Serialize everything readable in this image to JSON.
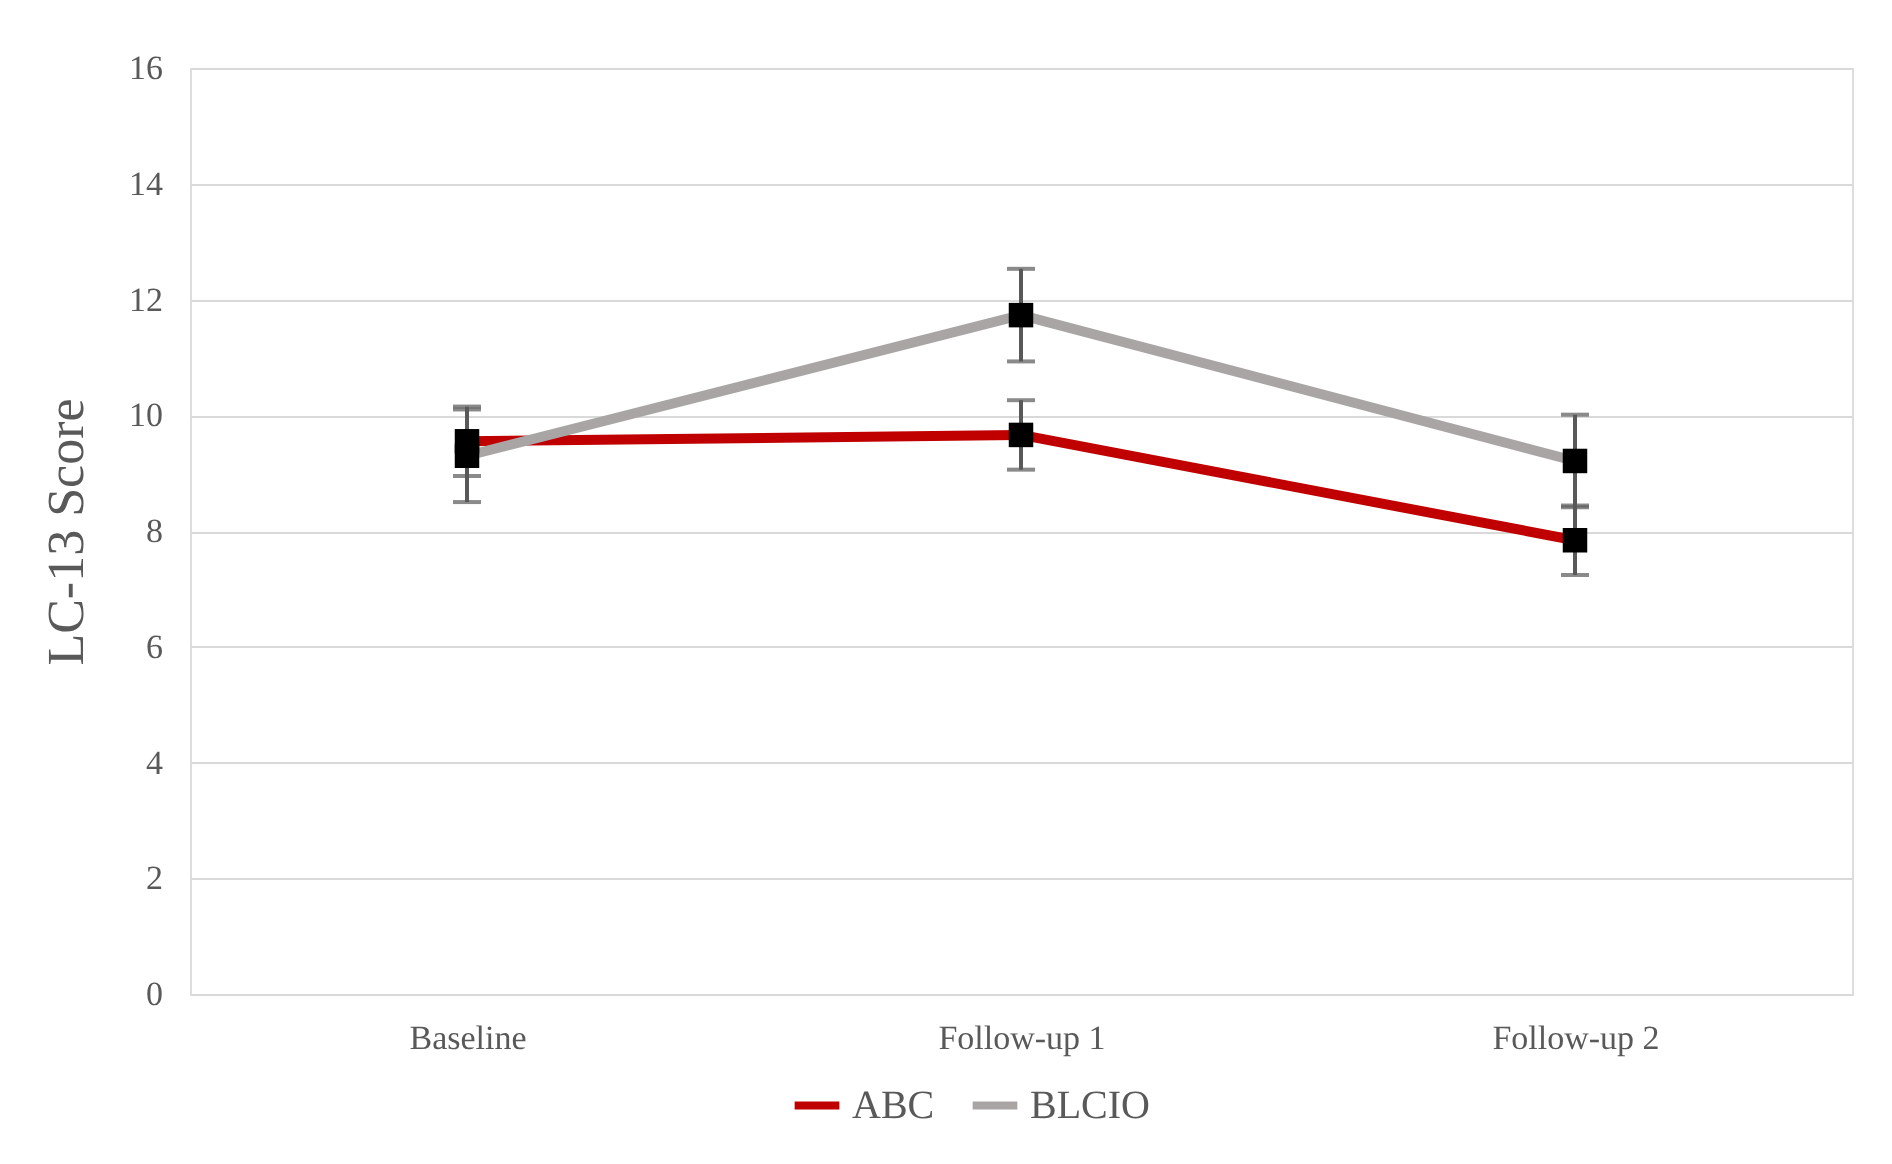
{
  "chart_data": {
    "type": "line",
    "ylabel": "LC-13  Score",
    "categories": [
      "Baseline",
      "Follow-up 1",
      "Follow-up 2"
    ],
    "series": [
      {
        "name": "ABC",
        "color": "#c00000",
        "values": [
          9.55,
          9.66,
          7.84
        ],
        "errors": [
          0.6,
          0.6,
          0.6
        ]
      },
      {
        "name": "BLCIO",
        "color": "#a9a5a5",
        "values": [
          9.3,
          11.73,
          9.21
        ],
        "errors": [
          0.8,
          0.8,
          0.8
        ]
      }
    ],
    "ylim": [
      0,
      16
    ],
    "yticks": [
      0,
      2,
      4,
      6,
      8,
      10,
      12,
      14,
      16
    ],
    "grid": "y",
    "legend": "bottom",
    "marker": "square",
    "line_style": "solid"
  }
}
